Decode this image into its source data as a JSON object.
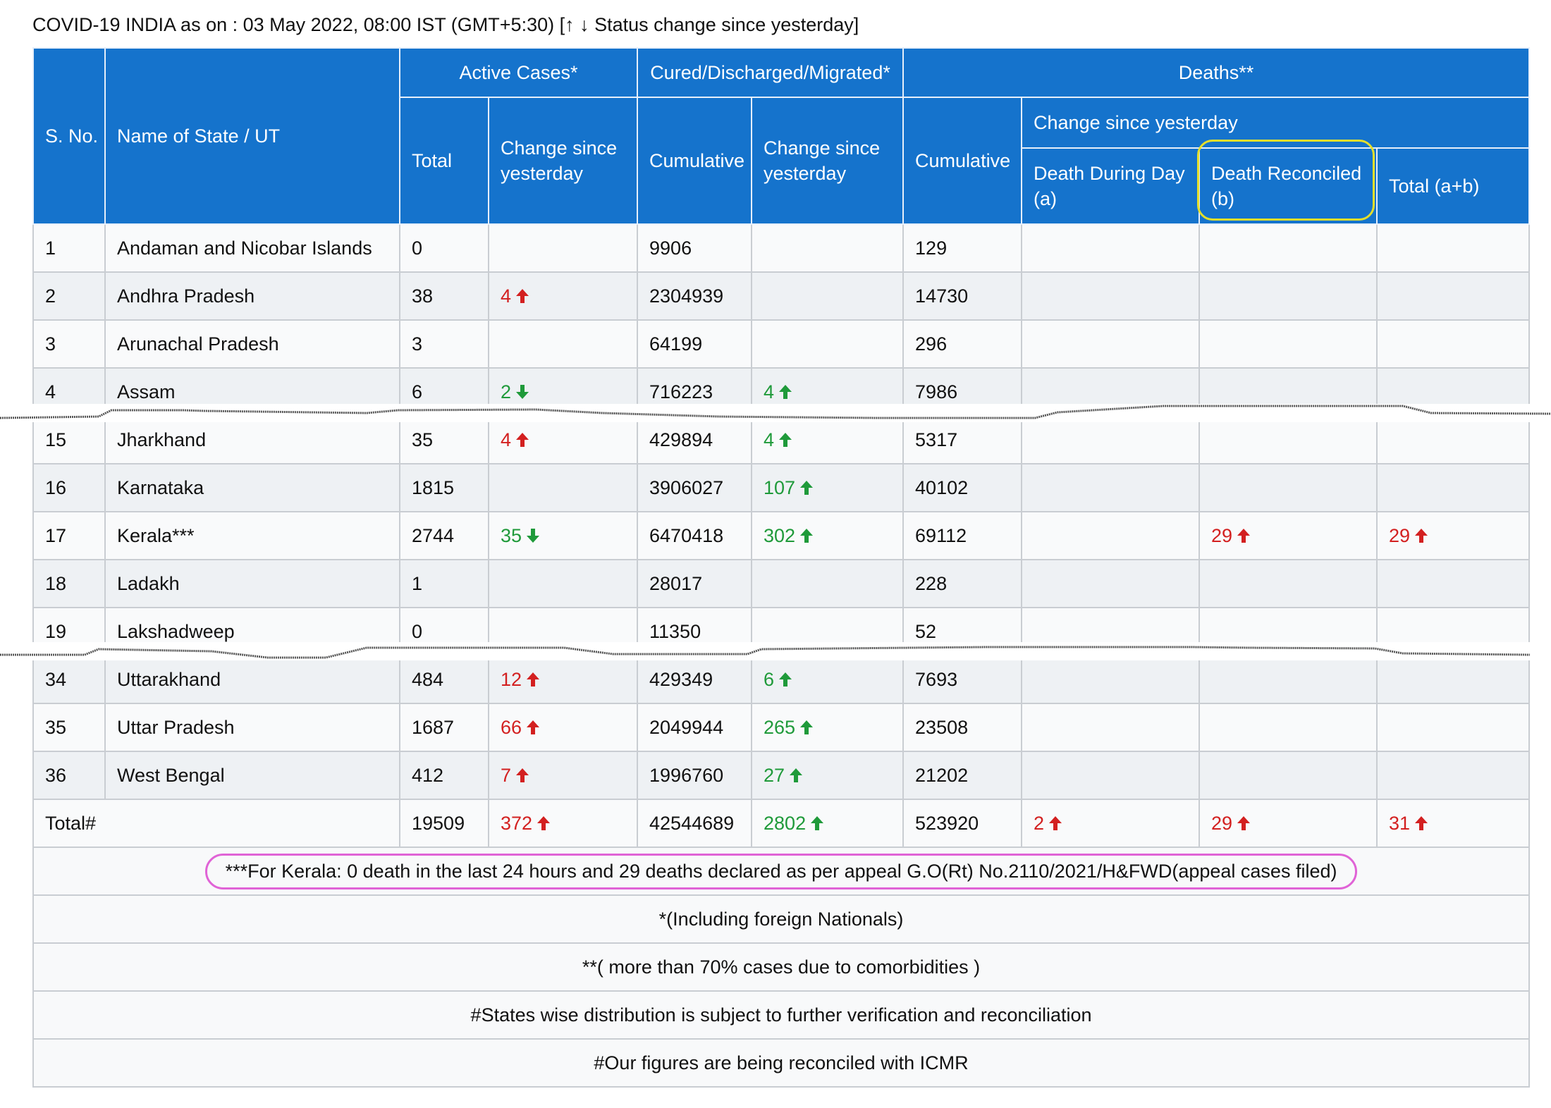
{
  "caption": "COVID-19 INDIA as on : 03 May 2022, 08:00 IST (GMT+5:30) [↑ ↓ Status change since yesterday]",
  "headers": {
    "sno": "S. No.",
    "state": "Name of State / UT",
    "active": "Active Cases*",
    "cured": "Cured/Discharged/Migrated*",
    "deaths": "Deaths**",
    "total": "Total",
    "change": "Change since yesterday",
    "cumulative": "Cumulative",
    "death_change": "Change since yesterday",
    "death_during_day": "Death During Day (a)",
    "death_reconciled": "Death Reconciled (b)",
    "death_total": "Total (a+b)"
  },
  "rows": [
    {
      "sno": "1",
      "state": "Andaman and Nicobar Islands",
      "active": "0",
      "active_chg": "",
      "active_dir": "",
      "cured": "9906",
      "cured_chg": "",
      "cured_dir": "",
      "deaths": "129",
      "dd": "",
      "dd_dir": "",
      "dr": "",
      "dr_dir": "",
      "dt": "",
      "dt_dir": ""
    },
    {
      "sno": "2",
      "state": "Andhra Pradesh",
      "active": "38",
      "active_chg": "4",
      "active_dir": "up",
      "cured": "2304939",
      "cured_chg": "",
      "cured_dir": "",
      "deaths": "14730",
      "dd": "",
      "dd_dir": "",
      "dr": "",
      "dr_dir": "",
      "dt": "",
      "dt_dir": ""
    },
    {
      "sno": "3",
      "state": "Arunachal Pradesh",
      "active": "3",
      "active_chg": "",
      "active_dir": "",
      "cured": "64199",
      "cured_chg": "",
      "cured_dir": "",
      "deaths": "296",
      "dd": "",
      "dd_dir": "",
      "dr": "",
      "dr_dir": "",
      "dt": "",
      "dt_dir": ""
    },
    {
      "sno": "4",
      "state": "Assam",
      "active": "6",
      "active_chg": "2",
      "active_dir": "down",
      "cured": "716223",
      "cured_chg": "4",
      "cured_dir": "gup",
      "deaths": "7986",
      "dd": "",
      "dd_dir": "",
      "dr": "",
      "dr_dir": "",
      "dt": "",
      "dt_dir": ""
    },
    {
      "sno": "15",
      "state": "Jharkhand",
      "active": "35",
      "active_chg": "4",
      "active_dir": "up",
      "cured": "429894",
      "cured_chg": "4",
      "cured_dir": "gup",
      "deaths": "5317",
      "dd": "",
      "dd_dir": "",
      "dr": "",
      "dr_dir": "",
      "dt": "",
      "dt_dir": ""
    },
    {
      "sno": "16",
      "state": "Karnataka",
      "active": "1815",
      "active_chg": "",
      "active_dir": "",
      "cured": "3906027",
      "cured_chg": "107",
      "cured_dir": "gup",
      "deaths": "40102",
      "dd": "",
      "dd_dir": "",
      "dr": "",
      "dr_dir": "",
      "dt": "",
      "dt_dir": ""
    },
    {
      "sno": "17",
      "state": "Kerala***",
      "active": "2744",
      "active_chg": "35",
      "active_dir": "down",
      "cured": "6470418",
      "cured_chg": "302",
      "cured_dir": "gup",
      "deaths": "69112",
      "dd": "",
      "dd_dir": "",
      "dr": "29",
      "dr_dir": "up",
      "dt": "29",
      "dt_dir": "up"
    },
    {
      "sno": "18",
      "state": "Ladakh",
      "active": "1",
      "active_chg": "",
      "active_dir": "",
      "cured": "28017",
      "cured_chg": "",
      "cured_dir": "",
      "deaths": "228",
      "dd": "",
      "dd_dir": "",
      "dr": "",
      "dr_dir": "",
      "dt": "",
      "dt_dir": ""
    },
    {
      "sno": "19",
      "state": "Lakshadweep",
      "active": "0",
      "active_chg": "",
      "active_dir": "",
      "cured": "11350",
      "cured_chg": "",
      "cured_dir": "",
      "deaths": "52",
      "dd": "",
      "dd_dir": "",
      "dr": "",
      "dr_dir": "",
      "dt": "",
      "dt_dir": ""
    },
    {
      "sno": "34",
      "state": "Uttarakhand",
      "active": "484",
      "active_chg": "12",
      "active_dir": "up",
      "cured": "429349",
      "cured_chg": "6",
      "cured_dir": "gup",
      "deaths": "7693",
      "dd": "",
      "dd_dir": "",
      "dr": "",
      "dr_dir": "",
      "dt": "",
      "dt_dir": ""
    },
    {
      "sno": "35",
      "state": "Uttar Pradesh",
      "active": "1687",
      "active_chg": "66",
      "active_dir": "up",
      "cured": "2049944",
      "cured_chg": "265",
      "cured_dir": "gup",
      "deaths": "23508",
      "dd": "",
      "dd_dir": "",
      "dr": "",
      "dr_dir": "",
      "dt": "",
      "dt_dir": ""
    },
    {
      "sno": "36",
      "state": "West Bengal",
      "active": "412",
      "active_chg": "7",
      "active_dir": "up",
      "cured": "1996760",
      "cured_chg": "27",
      "cured_dir": "gup",
      "deaths": "21202",
      "dd": "",
      "dd_dir": "",
      "dr": "",
      "dr_dir": "",
      "dt": "",
      "dt_dir": ""
    }
  ],
  "total": {
    "label": "Total#",
    "active": "19509",
    "active_chg": "372",
    "active_dir": "up",
    "cured": "42544689",
    "cured_chg": "2802",
    "cured_dir": "gup",
    "deaths": "523920",
    "dd": "2",
    "dd_dir": "up",
    "dr": "29",
    "dr_dir": "up",
    "dt": "31",
    "dt_dir": "up"
  },
  "notes": [
    "***For Kerala: 0 death in the last 24 hours and 29 deaths declared as per appeal G.O(Rt) No.2110/2021/H&FWD(appeal cases filed)",
    "*(Including foreign Nationals)",
    "**( more than 70% cases due to comorbidities )",
    "#States wise distribution is subject to further verification and reconciliation",
    "#Our figures are being reconciled with ICMR"
  ],
  "colors": {
    "header_bg": "#1573cc",
    "increase": "#d32020",
    "decrease": "#1f9a3a",
    "highlight_yellow": "#e4df2b",
    "highlight_pink": "#e063d6"
  }
}
